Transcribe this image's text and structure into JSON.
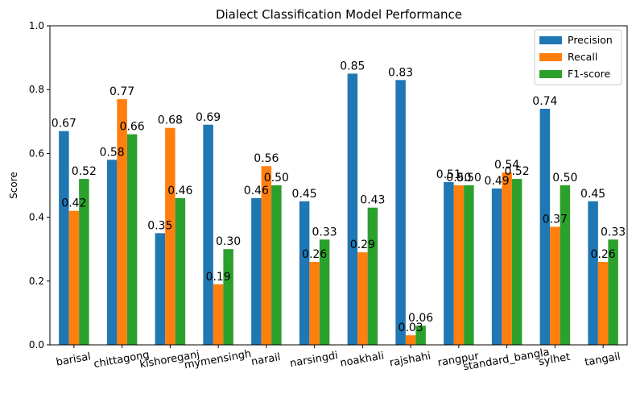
{
  "chart_data": {
    "type": "bar",
    "title": "Dialect Classification Model Performance",
    "xlabel": "",
    "ylabel": "Score",
    "ylim": [
      0,
      1
    ],
    "yticks": [
      "0.0",
      "0.2",
      "0.4",
      "0.6",
      "0.8",
      "1.0"
    ],
    "legend_position": "top-right",
    "categories": [
      "barisal",
      "chittagong",
      "kishoreganj",
      "mymensingh",
      "narail",
      "narsingdi",
      "noakhali",
      "rajshahi",
      "rangpur",
      "standard_bangla",
      "sylhet",
      "tangail"
    ],
    "series": [
      {
        "name": "Precision",
        "color": "#1f77b4",
        "values": [
          0.67,
          0.58,
          0.35,
          0.69,
          0.46,
          0.45,
          0.85,
          0.83,
          0.51,
          0.49,
          0.74,
          0.45
        ]
      },
      {
        "name": "Recall",
        "color": "#ff7f0e",
        "values": [
          0.42,
          0.77,
          0.68,
          0.19,
          0.56,
          0.26,
          0.29,
          0.03,
          0.5,
          0.54,
          0.37,
          0.26
        ]
      },
      {
        "name": "F1-score",
        "color": "#2ca02c",
        "values": [
          0.52,
          0.66,
          0.46,
          0.3,
          0.5,
          0.33,
          0.43,
          0.06,
          0.5,
          0.52,
          0.5,
          0.33
        ]
      }
    ]
  }
}
